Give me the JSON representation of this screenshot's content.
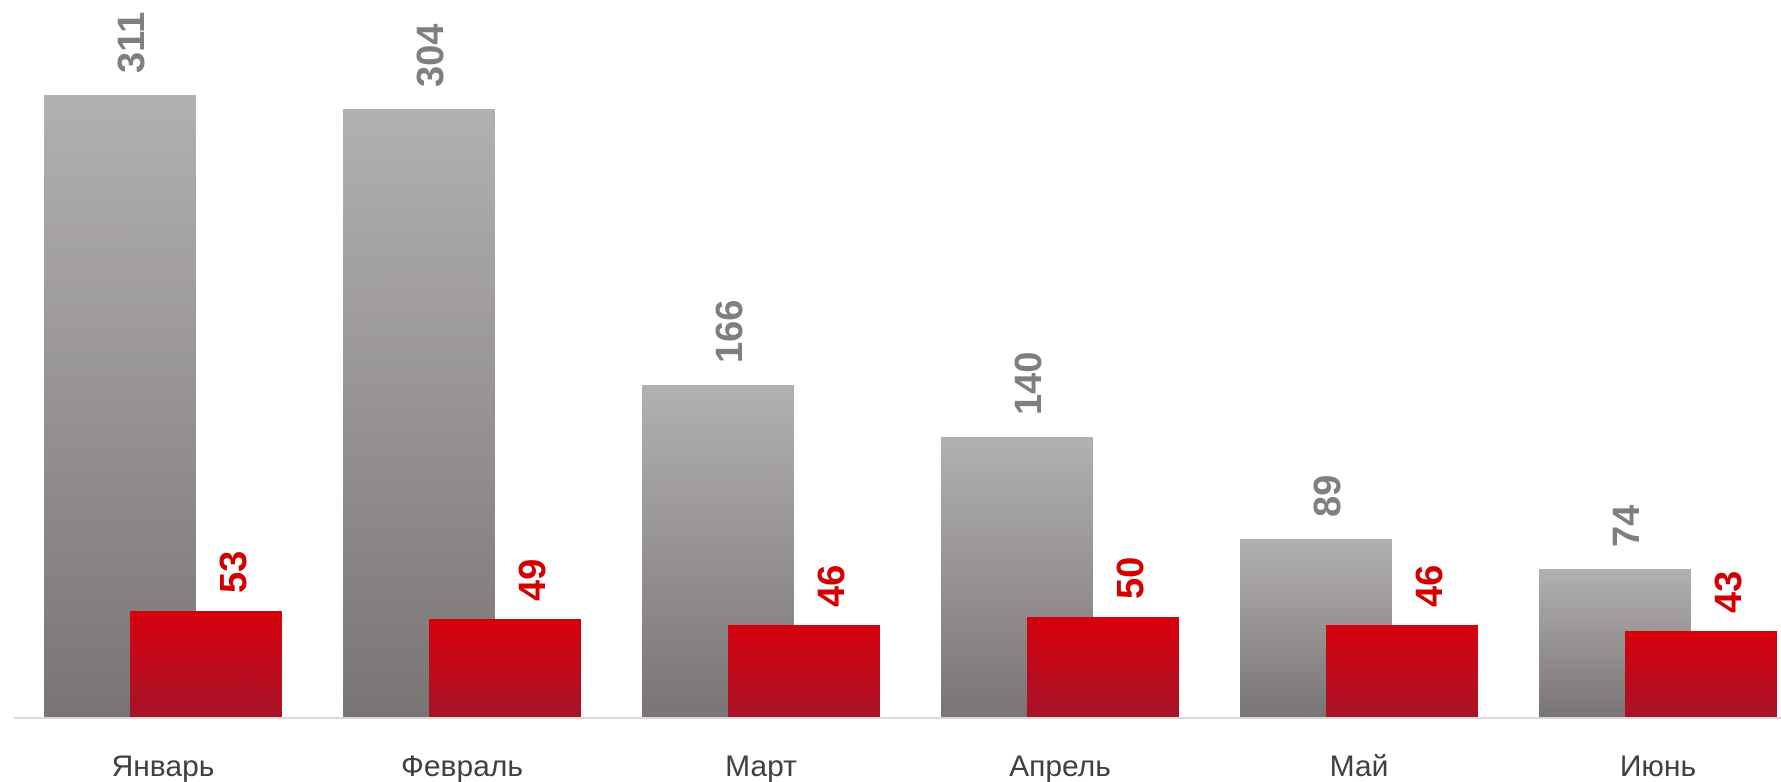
{
  "chart_data": {
    "type": "bar",
    "categories": [
      "Январь",
      "Февраль",
      "Март",
      "Апрель",
      "Май",
      "Июнь"
    ],
    "series": [
      {
        "values": [
          311,
          304,
          166,
          140,
          89,
          74
        ],
        "color": "#8e8b8a",
        "label_color": "#7f7f7f"
      },
      {
        "values": [
          53,
          49,
          46,
          50,
          46,
          43
        ],
        "color": "#c8000f",
        "label_color": "#d40000"
      }
    ],
    "title": "",
    "xlabel": "",
    "ylabel": "",
    "ylim": [
      0,
      311
    ],
    "grid": false,
    "legend": "none",
    "axis_line_color": "#d9d9d9"
  }
}
